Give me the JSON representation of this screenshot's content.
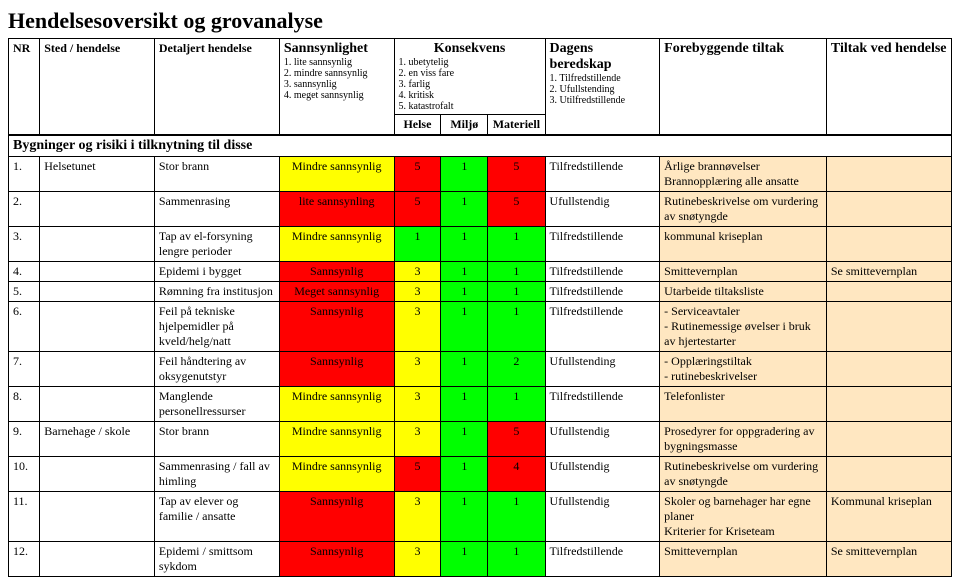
{
  "page_title": "Hendelsesoversikt og grovanalyse",
  "colors": {
    "red": "#ff0000",
    "yellow": "#ffff00",
    "green": "#00ff00",
    "beige": "#ffe7c1",
    "white": "#ffffff"
  },
  "columns": {
    "nr": "NR",
    "sted": "Sted / hendelse",
    "detaljert": "Detaljert hendelse",
    "sannsynlighet": {
      "title": "Sannsynlighet",
      "items": [
        "1. lite sannsynlig",
        "2. mindre sannsynlig",
        "3. sannsynlig",
        "4. meget sannsynlig"
      ]
    },
    "konsekvens": {
      "title": "Konsekvens",
      "items": [
        "1. ubetytelig",
        "2. en viss fare",
        "3. farlig",
        "4. kritisk",
        "5. katastrofalt"
      ],
      "sub": {
        "helse": "Helse",
        "miljo": "Miljø",
        "materiell": "Materiell"
      }
    },
    "beredskap": {
      "title": "Dagens beredskap",
      "items": [
        "1. Tilfredstillende",
        "2. Ufullstending",
        "3. Utilfredstillende"
      ]
    },
    "forebyggende": "Forebyggende tiltak",
    "tiltak_hendelse": "Tiltak ved hendelse"
  },
  "section": "Bygninger og risiki i tilknytning til disse",
  "rows": [
    {
      "nr": "1.",
      "sted": "Helsetunet",
      "det": "Stor brann",
      "sann": {
        "text": "Mindre sannsynlig",
        "color": "yellow"
      },
      "h": {
        "text": "5",
        "color": "red"
      },
      "m": {
        "text": "1",
        "color": "green"
      },
      "mat": {
        "text": "5",
        "color": "red"
      },
      "ber": "Tilfredstillende",
      "for": "Årlige brannøvelser\nBrannopplæring alle ansatte",
      "til": ""
    },
    {
      "nr": "2.",
      "sted": "",
      "det": "Sammenrasing",
      "sann": {
        "text": "lite sannsynling",
        "color": "red"
      },
      "h": {
        "text": "5",
        "color": "red"
      },
      "m": {
        "text": "1",
        "color": "green"
      },
      "mat": {
        "text": "5",
        "color": "red"
      },
      "ber": "Ufullstendig",
      "for": "Rutinebeskrivelse om vurdering av snøtyngde",
      "til": ""
    },
    {
      "nr": "3.",
      "sted": "",
      "det": "Tap av el-forsyning lengre perioder",
      "sann": {
        "text": "Mindre sannsynlig",
        "color": "yellow"
      },
      "h": {
        "text": "1",
        "color": "green"
      },
      "m": {
        "text": "1",
        "color": "green"
      },
      "mat": {
        "text": "1",
        "color": "green"
      },
      "ber": "Tilfredstillende",
      "for": "kommunal kriseplan",
      "til": ""
    },
    {
      "nr": "4.",
      "sted": "",
      "det": "Epidemi i bygget",
      "sann": {
        "text": "Sannsynlig",
        "color": "red"
      },
      "h": {
        "text": "3",
        "color": "yellow"
      },
      "m": {
        "text": "1",
        "color": "green"
      },
      "mat": {
        "text": "1",
        "color": "green"
      },
      "ber": "Tilfredstillende",
      "for": "Smittevernplan",
      "til": "Se smittevernplan"
    },
    {
      "nr": "5.",
      "sted": "",
      "det": "Rømning fra institusjon",
      "sann": {
        "text": "Meget sannsynlig",
        "color": "red"
      },
      "h": {
        "text": "3",
        "color": "yellow"
      },
      "m": {
        "text": "1",
        "color": "green"
      },
      "mat": {
        "text": "1",
        "color": "green"
      },
      "ber": "Tilfredstillende",
      "for": "Utarbeide tiltaksliste",
      "til": ""
    },
    {
      "nr": "6.",
      "sted": "",
      "det": "Feil på tekniske hjelpemidler på kveld/helg/natt",
      "sann": {
        "text": "Sannsynlig",
        "color": "red"
      },
      "h": {
        "text": "3",
        "color": "yellow"
      },
      "m": {
        "text": "1",
        "color": "green"
      },
      "mat": {
        "text": "1",
        "color": "green"
      },
      "ber": "Tilfredstillende",
      "for": "- Serviceavtaler\n- Rutinemessige øvelser i bruk av hjertestarter",
      "til": ""
    },
    {
      "nr": "7.",
      "sted": "",
      "det": "Feil håndtering av oksygenutstyr",
      "sann": {
        "text": "Sannsynlig",
        "color": "red"
      },
      "h": {
        "text": "3",
        "color": "yellow"
      },
      "m": {
        "text": "1",
        "color": "green"
      },
      "mat": {
        "text": "2",
        "color": "green"
      },
      "ber": "Ufullstending",
      "for": "- Opplæringstiltak\n- rutinebeskrivelser",
      "til": ""
    },
    {
      "nr": "8.",
      "sted": "",
      "det": "Manglende personellressurser",
      "sann": {
        "text": "Mindre sannsynlig",
        "color": "yellow"
      },
      "h": {
        "text": "3",
        "color": "yellow"
      },
      "m": {
        "text": "1",
        "color": "green"
      },
      "mat": {
        "text": "1",
        "color": "green"
      },
      "ber": "Tilfredstillende",
      "for": "Telefonlister",
      "til": ""
    },
    {
      "nr": "9.",
      "sted": "Barnehage / skole",
      "det": "Stor brann",
      "sann": {
        "text": "Mindre sannsynlig",
        "color": "yellow"
      },
      "h": {
        "text": "3",
        "color": "yellow"
      },
      "m": {
        "text": "1",
        "color": "green"
      },
      "mat": {
        "text": "5",
        "color": "red"
      },
      "ber": "Ufullstendig",
      "for": "Prosedyrer for oppgradering av bygningsmasse",
      "til": ""
    },
    {
      "nr": "10.",
      "sted": "",
      "det": "Sammenrasing / fall av himling",
      "sann": {
        "text": "Mindre sannsynlig",
        "color": "yellow"
      },
      "h": {
        "text": "5",
        "color": "red"
      },
      "m": {
        "text": "1",
        "color": "green"
      },
      "mat": {
        "text": "4",
        "color": "red"
      },
      "ber": "Ufullstendig",
      "for": "Rutinebeskrivelse om vurdering av snøtyngde",
      "til": ""
    },
    {
      "nr": "11.",
      "sted": "",
      "det": "Tap av elever og familie / ansatte",
      "sann": {
        "text": "Sannsynlig",
        "color": "red"
      },
      "h": {
        "text": "3",
        "color": "yellow"
      },
      "m": {
        "text": "1",
        "color": "green"
      },
      "mat": {
        "text": "1",
        "color": "green"
      },
      "ber": "Ufullstendig",
      "for": "Skoler og barnehager har egne planer\nKriterier for Kriseteam",
      "til": "Kommunal kriseplan"
    },
    {
      "nr": "12.",
      "sted": "",
      "det": "Epidemi / smittsom sykdom",
      "sann": {
        "text": "Sannsynlig",
        "color": "red"
      },
      "h": {
        "text": "3",
        "color": "yellow"
      },
      "m": {
        "text": "1",
        "color": "green"
      },
      "mat": {
        "text": "1",
        "color": "green"
      },
      "ber": "Tilfredstillende",
      "for": "Smittevernplan",
      "til": "Se smittevernplan"
    }
  ]
}
